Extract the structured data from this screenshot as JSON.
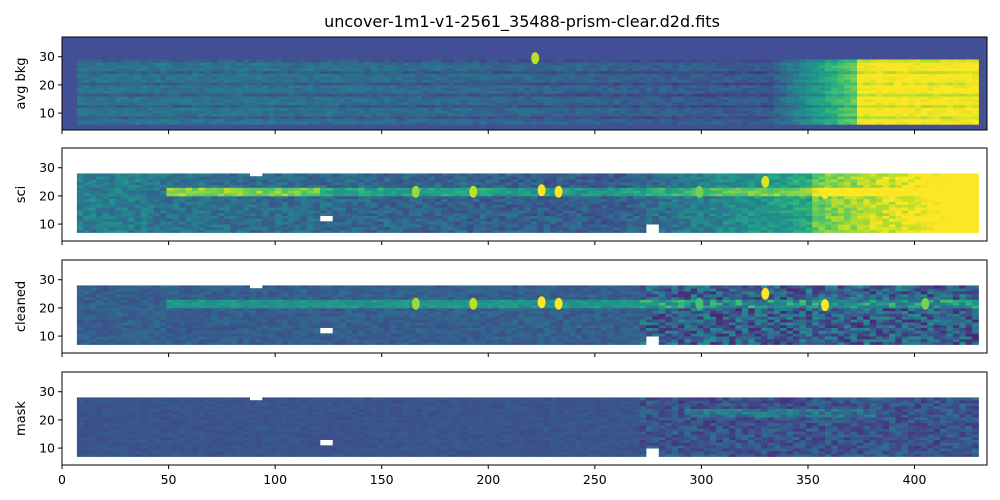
{
  "chart_data": {
    "type": "heatmap",
    "title": "uncover-1m1-v1-2561_35488-prism-clear.d2d.fits",
    "colormap": "viridis",
    "shared_x": true,
    "xlim": [
      0,
      434
    ],
    "x_ticks": [
      0,
      50,
      100,
      150,
      200,
      250,
      300,
      350,
      400
    ],
    "background_color": "#424f94",
    "panels": [
      {
        "ylabel": "avg bkg",
        "ylim": [
          4,
          37
        ],
        "y_ticks": [
          10,
          20,
          30
        ],
        "data_extent": {
          "x": [
            7,
            428
          ],
          "y": [
            6,
            29
          ]
        },
        "masked_notches": [],
        "features": [
          {
            "x": 222,
            "y": 29.5,
            "level": 0.9
          },
          {
            "x": 392,
            "y": 20,
            "level": 1.0
          }
        ],
        "description_levels": {
          "left": 0.35,
          "middle": 0.3,
          "right": 1.0
        }
      },
      {
        "ylabel": "sci",
        "ylim": [
          4,
          37
        ],
        "y_ticks": [
          10,
          20,
          30
        ],
        "data_extent": {
          "x": [
            7,
            428
          ],
          "y": [
            7,
            28
          ]
        },
        "trace_y": 21,
        "masked_notches": [
          {
            "x": [
              122,
              125
            ],
            "y": [
              11,
              13
            ]
          },
          {
            "x": [
              90,
              92
            ],
            "y": [
              27,
              29
            ]
          },
          {
            "x": [
              276,
              279
            ],
            "y": [
              7,
              10
            ]
          }
        ],
        "emission_lines": [
          {
            "x": 166,
            "y": 21.5,
            "level": 0.85
          },
          {
            "x": 193,
            "y": 21.5,
            "level": 0.9
          },
          {
            "x": 225,
            "y": 22,
            "level": 1.0
          },
          {
            "x": 233,
            "y": 21.5,
            "level": 1.0
          },
          {
            "x": 299,
            "y": 21.5,
            "level": 0.8
          },
          {
            "x": 330,
            "y": 25,
            "level": 0.95
          },
          {
            "x": 358,
            "y": 21,
            "level": 1.0
          }
        ]
      },
      {
        "ylabel": "cleaned",
        "ylim": [
          4,
          37
        ],
        "y_ticks": [
          10,
          20,
          30
        ],
        "data_extent": {
          "x": [
            7,
            428
          ],
          "y": [
            7,
            28
          ]
        },
        "trace_y": 21,
        "masked_notches": [
          {
            "x": [
              122,
              125
            ],
            "y": [
              11,
              13
            ]
          },
          {
            "x": [
              90,
              92
            ],
            "y": [
              27,
              29
            ]
          },
          {
            "x": [
              276,
              279
            ],
            "y": [
              7,
              10
            ]
          }
        ],
        "emission_lines": [
          {
            "x": 166,
            "y": 21.5,
            "level": 0.85
          },
          {
            "x": 193,
            "y": 21.5,
            "level": 0.9
          },
          {
            "x": 225,
            "y": 22,
            "level": 1.0
          },
          {
            "x": 233,
            "y": 21.5,
            "level": 1.0
          },
          {
            "x": 299,
            "y": 21.5,
            "level": 0.7
          },
          {
            "x": 330,
            "y": 25,
            "level": 1.0
          },
          {
            "x": 358,
            "y": 21,
            "level": 1.0
          },
          {
            "x": 405,
            "y": 21.5,
            "level": 0.8
          }
        ]
      },
      {
        "ylabel": "mask",
        "ylim": [
          4,
          37
        ],
        "y_ticks": [
          10,
          20,
          30
        ],
        "data_extent": {
          "x": [
            7,
            428
          ],
          "y": [
            7,
            28
          ]
        },
        "masked_notches": [
          {
            "x": [
              122,
              125
            ],
            "y": [
              11,
              13
            ]
          },
          {
            "x": [
              90,
              92
            ],
            "y": [
              27,
              29
            ]
          },
          {
            "x": [
              276,
              279
            ],
            "y": [
              7,
              10
            ]
          }
        ],
        "emission_lines": []
      }
    ]
  }
}
